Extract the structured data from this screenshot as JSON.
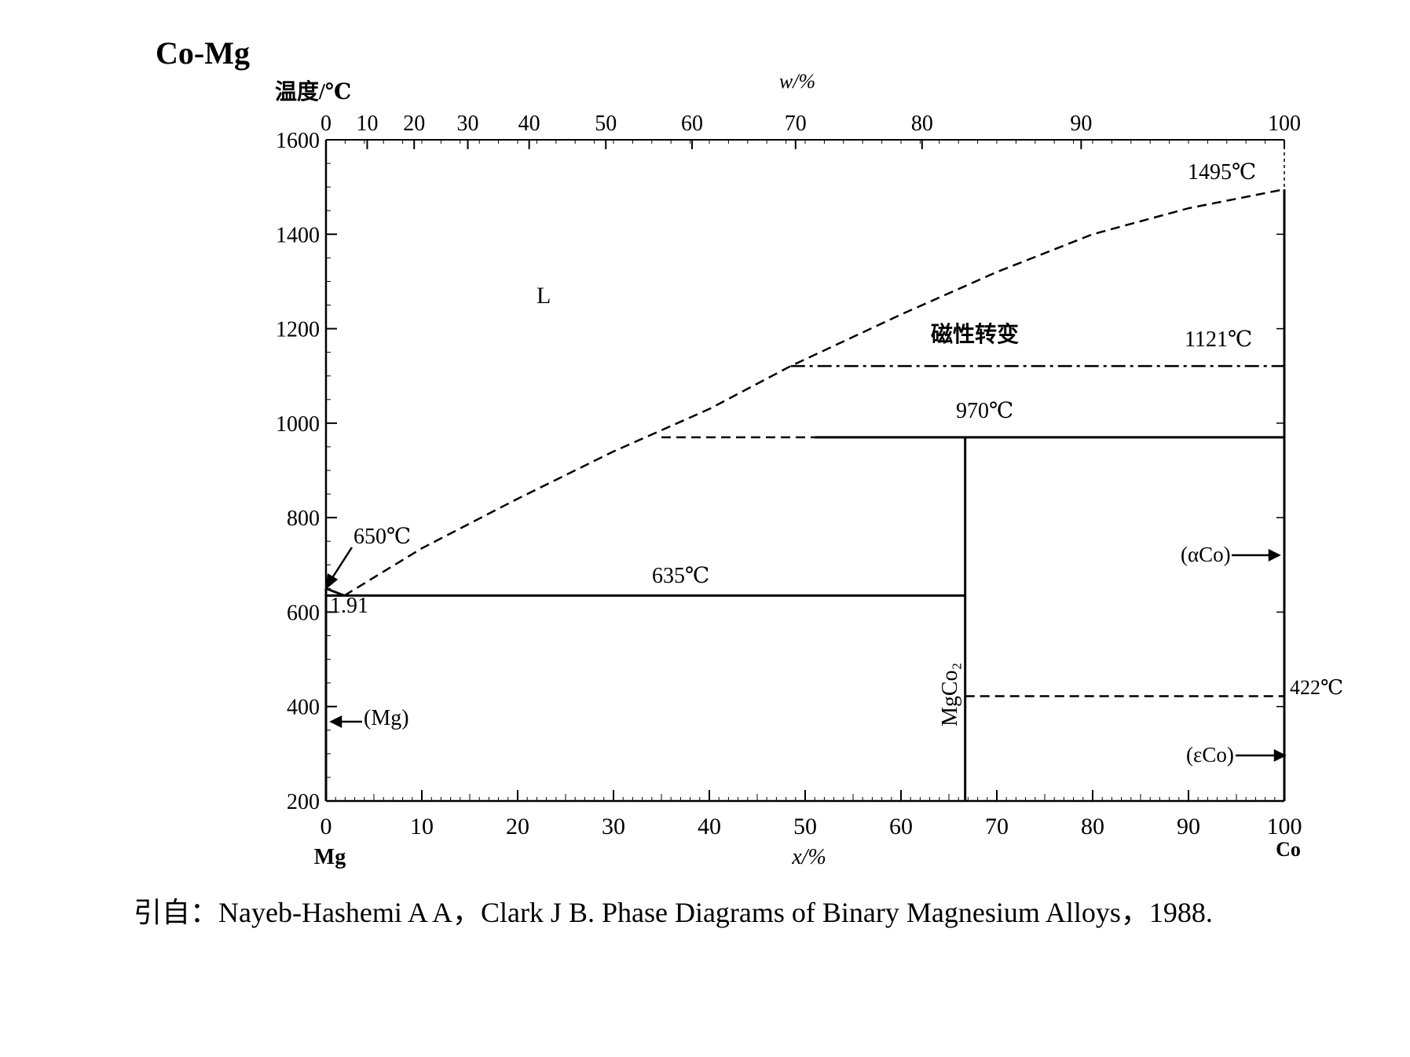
{
  "title": "Co-Mg",
  "citation": "引自：Nayeb-Hashemi A A，Clark J B. Phase Diagrams of Binary Magnesium Alloys，1988.",
  "chart_data": {
    "type": "line",
    "subtype": "binary phase diagram",
    "ylabel": "温度/℃",
    "xlabel": "x/%",
    "top_xlabel": "w/%",
    "xlim": [
      0,
      100
    ],
    "ylim": [
      200,
      1600
    ],
    "x_ticks": [
      "0",
      "10",
      "20",
      "30",
      "40",
      "50",
      "60",
      "70",
      "80",
      "90",
      "100"
    ],
    "y_ticks": [
      "200",
      "400",
      "600",
      "800",
      "1000",
      "1200",
      "1400",
      "1600"
    ],
    "top_ticks": [
      {
        "label": "0",
        "x": 0
      },
      {
        "label": "10",
        "x": 4.3
      },
      {
        "label": "20",
        "x": 9.2
      },
      {
        "label": "30",
        "x": 14.8
      },
      {
        "label": "40",
        "x": 21.2
      },
      {
        "label": "50",
        "x": 29.2
      },
      {
        "label": "60",
        "x": 38.2
      },
      {
        "label": "70",
        "x": 49.0
      },
      {
        "label": "80",
        "x": 62.2
      },
      {
        "label": "90",
        "x": 78.8
      },
      {
        "label": "100",
        "x": 100
      }
    ],
    "left_end_label": "Mg",
    "right_end_label": "Co",
    "phase_labels": [
      "L",
      "(Mg)",
      "(αCo)",
      "(εCo)",
      "MgCo₂",
      "磁性转变"
    ],
    "temperature_labels": [
      "650℃",
      "1.91",
      "635℃",
      "970℃",
      "1121℃",
      "1495℃",
      "422℃"
    ],
    "lines": [
      {
        "name": "liquidus",
        "style": "dashed",
        "points": [
          [
            1.91,
            635
          ],
          [
            10,
            735
          ],
          [
            20,
            840
          ],
          [
            30,
            940
          ],
          [
            35,
            985
          ],
          [
            40,
            1030
          ],
          [
            48.5,
            1121
          ],
          [
            60,
            1230
          ],
          [
            70,
            1320
          ],
          [
            80,
            1400
          ],
          [
            90,
            1455
          ],
          [
            100,
            1495
          ]
        ]
      },
      {
        "name": "Mg melting",
        "style": "solid",
        "points": [
          [
            0,
            650
          ],
          [
            1.91,
            635
          ]
        ]
      },
      {
        "name": "eutectic 635",
        "style": "solid",
        "points": [
          [
            0,
            635
          ],
          [
            66.7,
            635
          ]
        ]
      },
      {
        "name": "peritectic 970 (metastable)",
        "style": "dashed",
        "points": [
          [
            35,
            970
          ],
          [
            51,
            970
          ]
        ]
      },
      {
        "name": "peritectic 970",
        "style": "solid",
        "points": [
          [
            51,
            970
          ],
          [
            100,
            970
          ]
        ]
      },
      {
        "name": "magnetic 1121",
        "style": "dashdot",
        "points": [
          [
            48.5,
            1121
          ],
          [
            100,
            1121
          ]
        ]
      },
      {
        "name": "εCo/αCo 422",
        "style": "dashed",
        "points": [
          [
            66.7,
            422
          ],
          [
            100,
            422
          ]
        ]
      },
      {
        "name": "MgCo2",
        "style": "solid",
        "points": [
          [
            66.7,
            200
          ],
          [
            66.7,
            970
          ]
        ]
      },
      {
        "name": "Mg axis",
        "style": "solid",
        "points": [
          [
            0,
            200
          ],
          [
            0,
            650
          ]
        ]
      },
      {
        "name": "Co axis",
        "style": "solid",
        "points": [
          [
            100,
            200
          ],
          [
            100,
            1495
          ]
        ]
      }
    ]
  }
}
